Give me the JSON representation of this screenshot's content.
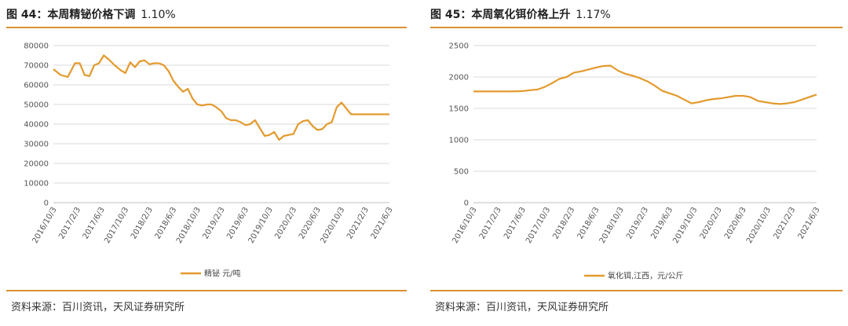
{
  "colors": {
    "series": "#e39a2e",
    "rule": "#d99030",
    "grid": "#d9d9d9"
  },
  "panels": [
    {
      "title_main": "图 44：本周精铋价格下调",
      "title_change": "1.10%",
      "source": "资料来源：百川资讯，天风证券研究所",
      "chart_data": {
        "type": "line",
        "y_ticks": [
          "0",
          "10000",
          "20000",
          "30000",
          "40000",
          "50000",
          "60000",
          "70000",
          "80000"
        ],
        "ylim": [
          0,
          80000
        ],
        "x_ticks": [
          "2016/10/3",
          "2017/2/3",
          "2017/6/3",
          "2017/10/3",
          "2018/2/3",
          "2018/6/3",
          "2018/10/3",
          "2019/2/3",
          "2019/6/3",
          "2019/10/3",
          "2020/2/3",
          "2020/6/3",
          "2020/10/3",
          "2021/2/3",
          "2021/6/3"
        ],
        "grid": true,
        "legend_position": "bottom",
        "series": [
          {
            "name": "精铋 元/吨",
            "x": [
              0,
              0.3,
              0.6,
              0.9,
              1.1,
              1.3,
              1.5,
              1.7,
              1.9,
              2.1,
              2.3,
              2.55,
              2.8,
              3.0,
              3.2,
              3.4,
              3.6,
              3.8,
              4.0,
              4.2,
              4.4,
              4.6,
              4.8,
              5.0,
              5.2,
              5.4,
              5.6,
              5.8,
              6.0,
              6.2,
              6.4,
              6.6,
              6.8,
              7.0,
              7.2,
              7.4,
              7.6,
              7.8,
              8.0,
              8.2,
              8.4,
              8.6,
              8.8,
              9.0,
              9.2,
              9.4,
              9.6,
              9.8,
              10.0,
              10.2,
              10.4,
              10.6,
              10.8,
              11.0,
              11.2,
              11.4,
              11.6,
              11.8,
              12.0,
              12.2,
              12.4,
              12.6,
              12.8,
              13.0,
              13.2,
              13.4,
              13.6,
              13.8,
              14.0
            ],
            "values": [
              68000,
              65000,
              64000,
              71000,
              71000,
              65000,
              64500,
              70000,
              71000,
              75000,
              73000,
              70000,
              67500,
              66000,
              71500,
              69000,
              72000,
              72500,
              70500,
              71000,
              71000,
              70000,
              67000,
              62000,
              59000,
              56500,
              58000,
              53000,
              50000,
              49500,
              50000,
              50000,
              48500,
              46500,
              43000,
              42000,
              42000,
              41000,
              39500,
              40000,
              42000,
              38000,
              34000,
              34500,
              36000,
              32000,
              34000,
              34500,
              35000,
              40000,
              41500,
              42000,
              39000,
              37000,
              37500,
              40000,
              41000,
              48500,
              51000,
              48000,
              45000,
              45000,
              45000,
              45000,
              45000,
              45000,
              45000,
              45000,
              45000
            ]
          }
        ]
      }
    },
    {
      "title_main": "图 45：本周氧化铒价格上升",
      "title_change": "1.17%",
      "source": "资料来源：百川资讯，天风证券研究所",
      "chart_data": {
        "type": "line",
        "y_ticks": [
          "0",
          "500",
          "1000",
          "1500",
          "2000",
          "2500"
        ],
        "ylim": [
          0,
          2500
        ],
        "x_ticks": [
          "2016/10/3",
          "2017/2/3",
          "2017/6/3",
          "2017/10/3",
          "2018/2/3",
          "2018/6/3",
          "2018/10/3",
          "2019/2/3",
          "2019/6/3",
          "2019/10/3",
          "2020/2/3",
          "2020/6/3",
          "2020/10/3",
          "2021/2/3",
          "2021/6/3"
        ],
        "grid": true,
        "legend_position": "bottom",
        "series": [
          {
            "name": "氧化铒,江西，元/公斤",
            "x": [
              0,
              0.5,
              1.0,
              1.5,
              2.0,
              2.3,
              2.6,
              2.9,
              3.2,
              3.5,
              3.8,
              4.1,
              4.4,
              4.7,
              5.0,
              5.3,
              5.6,
              5.9,
              6.2,
              6.5,
              6.8,
              7.1,
              7.4,
              7.7,
              8.0,
              8.3,
              8.6,
              8.9,
              9.2,
              9.5,
              9.8,
              10.1,
              10.4,
              10.7,
              11.0,
              11.3,
              11.6,
              11.9,
              12.2,
              12.5,
              12.8,
              13.1,
              13.4,
              13.7,
              14.0
            ],
            "values": [
              1770,
              1770,
              1770,
              1770,
              1775,
              1790,
              1800,
              1840,
              1900,
              1970,
              2000,
              2070,
              2090,
              2120,
              2150,
              2175,
              2180,
              2100,
              2050,
              2020,
              1980,
              1930,
              1860,
              1780,
              1740,
              1700,
              1640,
              1580,
              1600,
              1630,
              1650,
              1660,
              1680,
              1700,
              1700,
              1680,
              1620,
              1600,
              1580,
              1570,
              1580,
              1600,
              1640,
              1680,
              1720
            ]
          }
        ]
      }
    }
  ]
}
